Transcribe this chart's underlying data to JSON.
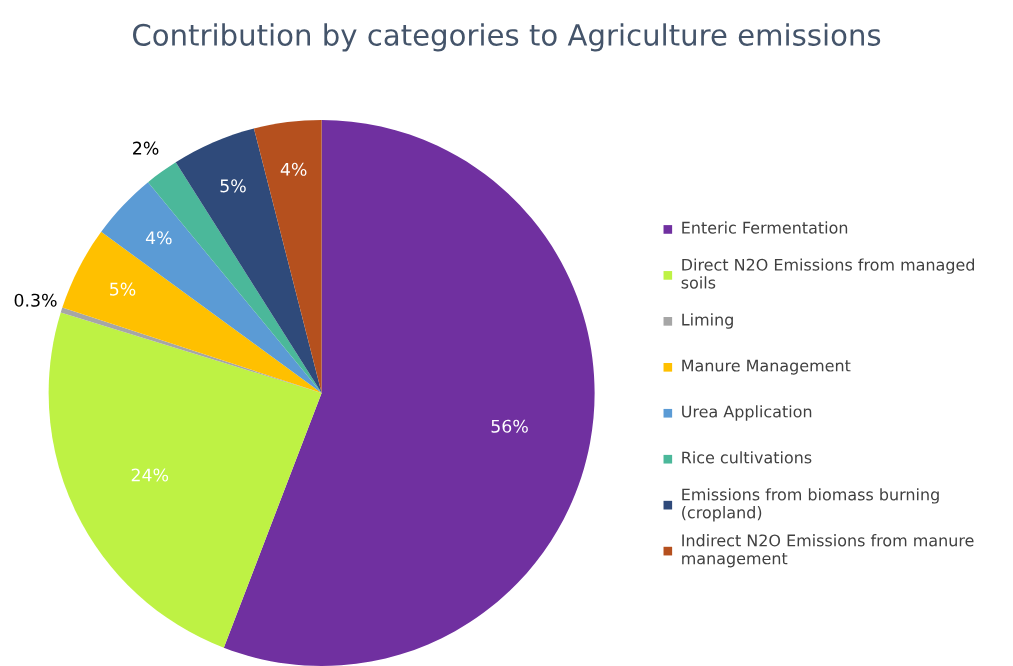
{
  "chart_data": {
    "type": "pie",
    "title": "Contribution by categories to Agriculture emissions",
    "categories": [
      "Enteric Fermentation",
      "Direct N2O Emissions from managed soils",
      "Liming",
      "Manure Management",
      "Urea Application",
      "Rice cultivations",
      "Emissions from biomass burning (cropland)",
      "Indirect N2O Emissions from manure management"
    ],
    "values": [
      56,
      24,
      0.3,
      5,
      4,
      2,
      5,
      4
    ],
    "colors": [
      "#7030a0",
      "#bef244",
      "#a6a6a6",
      "#ffc000",
      "#5b9bd5",
      "#4bb89a",
      "#2f4a7a",
      "#b5501e"
    ],
    "value_labels": [
      "56%",
      "24%",
      "0.3%",
      "5%",
      "4%",
      "2%",
      "5%",
      "4%"
    ],
    "legend": "right"
  }
}
